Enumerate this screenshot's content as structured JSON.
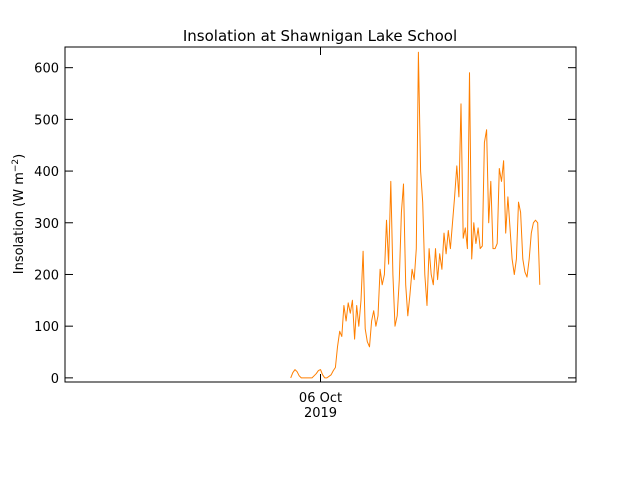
{
  "chart_data": {
    "type": "line",
    "title": "Insolation at Shawnigan Lake School",
    "ylabel_text": "Insolation (W m",
    "ylabel_sup": "−2",
    "ylabel_close": ")",
    "xlabel": "",
    "ylim": [
      -8,
      640
    ],
    "yticks": [
      0,
      100,
      200,
      300,
      400,
      500,
      600
    ],
    "x_unit": "day",
    "xlim": [
      "2019-10-01",
      "2019-10-11"
    ],
    "xticks": [
      {
        "x": "2019-10-06",
        "label": "06 Oct",
        "sublabel": "2019"
      }
    ],
    "grid": false,
    "series": [
      {
        "color": "#ff7f00",
        "points": [
          [
            "2019-10-05T10:00",
            0
          ],
          [
            "2019-10-05T11:00",
            10
          ],
          [
            "2019-10-05T12:00",
            16
          ],
          [
            "2019-10-05T13:00",
            12
          ],
          [
            "2019-10-05T14:00",
            4
          ],
          [
            "2019-10-05T15:00",
            0
          ],
          [
            "2019-10-05T20:00",
            0
          ],
          [
            "2019-10-05T21:00",
            4
          ],
          [
            "2019-10-05T22:00",
            8
          ],
          [
            "2019-10-05T23:00",
            14
          ],
          [
            "2019-10-06T00:00",
            16
          ],
          [
            "2019-10-06T01:00",
            6
          ],
          [
            "2019-10-06T02:00",
            0
          ],
          [
            "2019-10-06T03:00",
            0
          ],
          [
            "2019-10-06T05:00",
            6
          ],
          [
            "2019-10-06T06:00",
            14
          ],
          [
            "2019-10-06T07:00",
            20
          ],
          [
            "2019-10-06T08:00",
            60
          ],
          [
            "2019-10-06T09:00",
            90
          ],
          [
            "2019-10-06T10:00",
            80
          ],
          [
            "2019-10-06T11:00",
            140
          ],
          [
            "2019-10-06T12:00",
            110
          ],
          [
            "2019-10-06T13:00",
            145
          ],
          [
            "2019-10-06T14:00",
            125
          ],
          [
            "2019-10-06T15:00",
            150
          ],
          [
            "2019-10-06T16:00",
            75
          ],
          [
            "2019-10-06T17:00",
            140
          ],
          [
            "2019-10-06T18:00",
            100
          ],
          [
            "2019-10-06T19:00",
            150
          ],
          [
            "2019-10-06T20:00",
            245
          ],
          [
            "2019-10-06T21:00",
            95
          ],
          [
            "2019-10-06T22:00",
            70
          ],
          [
            "2019-10-06T23:00",
            60
          ],
          [
            "2019-10-07T00:00",
            110
          ],
          [
            "2019-10-07T01:00",
            130
          ],
          [
            "2019-10-07T02:00",
            100
          ],
          [
            "2019-10-07T03:00",
            120
          ],
          [
            "2019-10-07T04:00",
            210
          ],
          [
            "2019-10-07T05:00",
            180
          ],
          [
            "2019-10-07T06:00",
            200
          ],
          [
            "2019-10-07T07:00",
            305
          ],
          [
            "2019-10-07T08:00",
            220
          ],
          [
            "2019-10-07T09:00",
            380
          ],
          [
            "2019-10-07T10:00",
            200
          ],
          [
            "2019-10-07T11:00",
            100
          ],
          [
            "2019-10-07T12:00",
            120
          ],
          [
            "2019-10-07T13:00",
            190
          ],
          [
            "2019-10-07T14:00",
            320
          ],
          [
            "2019-10-07T15:00",
            375
          ],
          [
            "2019-10-07T16:00",
            180
          ],
          [
            "2019-10-07T17:00",
            120
          ],
          [
            "2019-10-07T18:00",
            160
          ],
          [
            "2019-10-07T19:00",
            210
          ],
          [
            "2019-10-07T20:00",
            190
          ],
          [
            "2019-10-07T21:00",
            250
          ],
          [
            "2019-10-07T22:00",
            630
          ],
          [
            "2019-10-07T23:00",
            400
          ],
          [
            "2019-10-08T00:00",
            340
          ],
          [
            "2019-10-08T01:00",
            200
          ],
          [
            "2019-10-08T02:00",
            140
          ],
          [
            "2019-10-08T03:00",
            250
          ],
          [
            "2019-10-08T04:00",
            200
          ],
          [
            "2019-10-08T05:00",
            180
          ],
          [
            "2019-10-08T06:00",
            250
          ],
          [
            "2019-10-08T07:00",
            190
          ],
          [
            "2019-10-08T08:00",
            240
          ],
          [
            "2019-10-08T09:00",
            210
          ],
          [
            "2019-10-08T10:00",
            280
          ],
          [
            "2019-10-08T11:00",
            240
          ],
          [
            "2019-10-08T12:00",
            285
          ],
          [
            "2019-10-08T13:00",
            250
          ],
          [
            "2019-10-08T14:00",
            300
          ],
          [
            "2019-10-08T15:00",
            350
          ],
          [
            "2019-10-08T16:00",
            410
          ],
          [
            "2019-10-08T17:00",
            350
          ],
          [
            "2019-10-08T18:00",
            530
          ],
          [
            "2019-10-08T19:00",
            270
          ],
          [
            "2019-10-08T20:00",
            290
          ],
          [
            "2019-10-08T21:00",
            250
          ],
          [
            "2019-10-08T22:00",
            590
          ],
          [
            "2019-10-08T23:00",
            230
          ],
          [
            "2019-10-09T00:00",
            300
          ],
          [
            "2019-10-09T01:00",
            260
          ],
          [
            "2019-10-09T02:00",
            290
          ],
          [
            "2019-10-09T03:00",
            250
          ],
          [
            "2019-10-09T04:00",
            255
          ],
          [
            "2019-10-09T05:00",
            455
          ],
          [
            "2019-10-09T06:00",
            480
          ],
          [
            "2019-10-09T07:00",
            300
          ],
          [
            "2019-10-09T08:00",
            380
          ],
          [
            "2019-10-09T09:00",
            250
          ],
          [
            "2019-10-09T10:00",
            250
          ],
          [
            "2019-10-09T11:00",
            260
          ],
          [
            "2019-10-09T12:00",
            405
          ],
          [
            "2019-10-09T13:00",
            380
          ],
          [
            "2019-10-09T14:00",
            420
          ],
          [
            "2019-10-09T15:00",
            280
          ],
          [
            "2019-10-09T16:00",
            350
          ],
          [
            "2019-10-09T17:00",
            290
          ],
          [
            "2019-10-09T18:00",
            230
          ],
          [
            "2019-10-09T19:00",
            200
          ],
          [
            "2019-10-09T20:00",
            230
          ],
          [
            "2019-10-09T21:00",
            340
          ],
          [
            "2019-10-09T22:00",
            320
          ],
          [
            "2019-10-09T23:00",
            230
          ],
          [
            "2019-10-10T00:00",
            205
          ],
          [
            "2019-10-10T01:00",
            195
          ],
          [
            "2019-10-10T02:00",
            230
          ],
          [
            "2019-10-10T03:00",
            280
          ],
          [
            "2019-10-10T04:00",
            300
          ],
          [
            "2019-10-10T05:00",
            305
          ],
          [
            "2019-10-10T06:00",
            300
          ],
          [
            "2019-10-10T07:00",
            180
          ]
        ]
      }
    ]
  }
}
